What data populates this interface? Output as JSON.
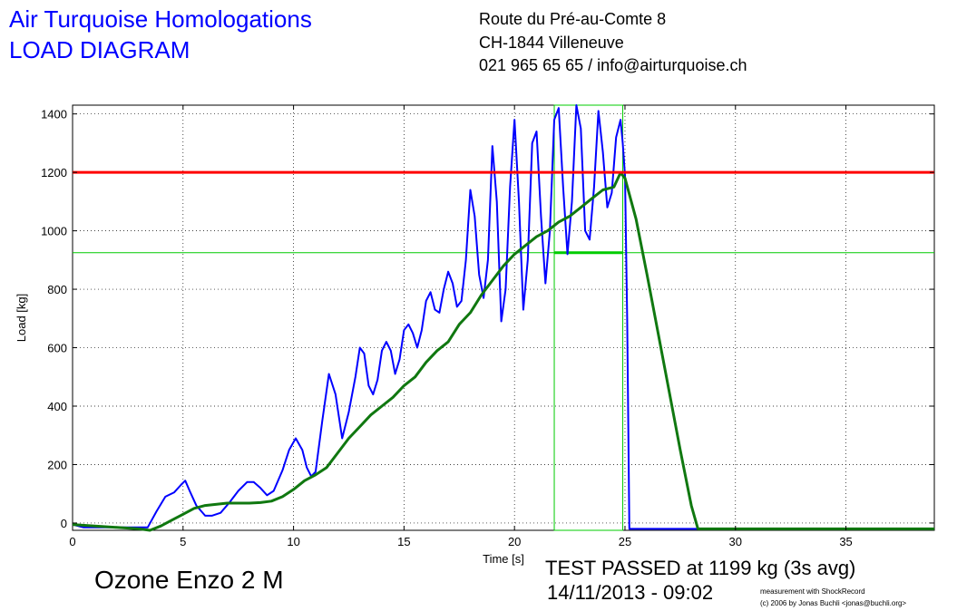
{
  "header": {
    "organization": "Air Turquoise Homologations",
    "diagram_title": "LOAD DIAGRAM",
    "address_line1": "Route du Pré-au-Comte 8",
    "address_line2": "CH-1844 Villeneuve",
    "contact": "021 965 65 65 / info@airturquoise.ch"
  },
  "footer": {
    "product": "Ozone Enzo 2 M",
    "result": "TEST PASSED at 1199 kg (3s avg)",
    "datetime": "14/11/2013 - 09:02",
    "credit_line1": "measurement with ShockRecord",
    "credit_line2": "(c) 2006 by Jonas Buchli <jonas@buchli.org>"
  },
  "colors": {
    "raw_load": "#0000ff",
    "avg_load": "#107810",
    "threshold": "#ff0000",
    "reference": "#00cc00"
  },
  "chart_data": {
    "type": "line",
    "xlabel": "Time [s]",
    "ylabel": "Load [kg]",
    "xlim": [
      0,
      39
    ],
    "ylim": [
      -25,
      1430
    ],
    "xticks": [
      0,
      5,
      10,
      15,
      20,
      25,
      30,
      35
    ],
    "yticks": [
      0,
      200,
      400,
      600,
      800,
      1000,
      1200,
      1400
    ],
    "grid": true,
    "threshold_kg": 1200,
    "reference_kg": 925,
    "window_s": [
      21.8,
      24.9
    ],
    "series": [
      {
        "key": "raw",
        "x": [
          0,
          0.5,
          1.5,
          2.5,
          3.4,
          3.8,
          4.2,
          4.6,
          4.9,
          5.1,
          5.3,
          5.6,
          6.0,
          6.3,
          6.7,
          7.1,
          7.5,
          7.9,
          8.2,
          8.5,
          8.8,
          9.1,
          9.5,
          9.8,
          10.1,
          10.4,
          10.6,
          10.8,
          11.0,
          11.3,
          11.6,
          11.9,
          12.2,
          12.5,
          12.8,
          13.0,
          13.2,
          13.4,
          13.6,
          13.8,
          14.0,
          14.2,
          14.4,
          14.6,
          14.8,
          15.0,
          15.2,
          15.4,
          15.6,
          15.8,
          16.0,
          16.2,
          16.4,
          16.6,
          16.8,
          17.0,
          17.2,
          17.4,
          17.6,
          17.8,
          18.0,
          18.2,
          18.4,
          18.6,
          18.8,
          19.0,
          19.2,
          19.4,
          19.6,
          19.8,
          20.0,
          20.2,
          20.4,
          20.6,
          20.8,
          21.0,
          21.2,
          21.4,
          21.6,
          21.8,
          22.0,
          22.2,
          22.4,
          22.6,
          22.8,
          23.0,
          23.2,
          23.4,
          23.6,
          23.8,
          24.0,
          24.2,
          24.4,
          24.6,
          24.8,
          24.9,
          25.0,
          25.1,
          25.2,
          26,
          28,
          30,
          35,
          39
        ],
        "y": [
          -5,
          -15,
          -15,
          -15,
          -15,
          40,
          90,
          105,
          130,
          145,
          110,
          60,
          25,
          25,
          35,
          70,
          110,
          140,
          140,
          120,
          95,
          110,
          180,
          250,
          290,
          250,
          190,
          160,
          175,
          350,
          510,
          440,
          290,
          380,
          500,
          600,
          580,
          470,
          440,
          490,
          590,
          620,
          590,
          510,
          560,
          660,
          680,
          650,
          600,
          660,
          760,
          790,
          730,
          720,
          800,
          860,
          820,
          740,
          760,
          900,
          1140,
          1050,
          850,
          770,
          900,
          1290,
          1100,
          690,
          800,
          1150,
          1380,
          1100,
          730,
          900,
          1300,
          1340,
          1050,
          820,
          1000,
          1380,
          1420,
          1150,
          920,
          1100,
          1430,
          1350,
          1000,
          970,
          1150,
          1410,
          1270,
          1080,
          1130,
          1320,
          1380,
          1300,
          1190,
          700,
          -20,
          -20,
          -20,
          -20,
          -20,
          -20
        ]
      },
      {
        "key": "avg",
        "x": [
          0,
          1,
          2,
          3,
          3.5,
          4,
          4.5,
          5,
          5.5,
          6,
          7,
          8,
          8.5,
          9,
          9.5,
          10,
          10.5,
          11,
          11.5,
          12,
          12.5,
          13,
          13.5,
          14,
          14.5,
          15,
          15.5,
          16,
          16.5,
          17,
          17.5,
          18,
          18.5,
          19,
          19.5,
          20,
          20.5,
          21,
          21.5,
          22,
          22.5,
          23,
          23.5,
          24,
          24.5,
          24.8,
          25.0,
          25.5,
          26,
          26.5,
          27,
          27.5,
          28,
          28.3,
          30,
          35,
          39
        ],
        "y": [
          -5,
          -10,
          -15,
          -20,
          -25,
          -10,
          10,
          30,
          50,
          60,
          68,
          68,
          70,
          75,
          90,
          115,
          145,
          165,
          190,
          240,
          290,
          330,
          370,
          400,
          430,
          470,
          500,
          550,
          590,
          620,
          680,
          720,
          780,
          830,
          880,
          920,
          950,
          980,
          1000,
          1030,
          1050,
          1080,
          1110,
          1140,
          1150,
          1199,
          1180,
          1040,
          850,
          650,
          450,
          250,
          60,
          -20,
          -20,
          -20,
          -20
        ]
      }
    ]
  }
}
